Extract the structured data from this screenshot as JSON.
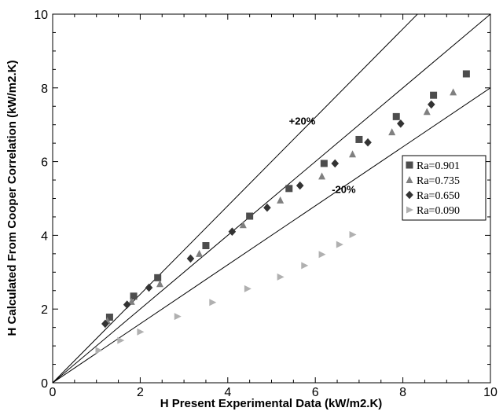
{
  "chart_data": {
    "type": "scatter",
    "xlabel": "H Present Experimental Data (kW/m2.K)",
    "ylabel": "H Calculated From Cooper Correlation (kW/m2.K)",
    "xlim": [
      0,
      10
    ],
    "ylim": [
      0,
      10
    ],
    "x_ticks": [
      "0",
      "2",
      "4",
      "6",
      "8",
      "10"
    ],
    "y_ticks": [
      "0",
      "2",
      "4",
      "6",
      "8",
      "10"
    ],
    "grid": false,
    "legend_position": "right",
    "reference_lines": [
      {
        "label": "",
        "slope": 1.0
      },
      {
        "label": "+20%",
        "slope": 1.2
      },
      {
        "label": "-20%",
        "slope": 0.8
      }
    ],
    "annotations": [
      {
        "text": "+20%",
        "x": 5.7,
        "y": 7.0
      },
      {
        "text": "-20%",
        "x": 6.65,
        "y": 5.15
      }
    ],
    "series": [
      {
        "name": "Ra=0.901",
        "marker": "square",
        "color": "#4d4d4d",
        "x": [
          1.3,
          1.85,
          2.4,
          3.5,
          4.5,
          5.4,
          6.2,
          7.0,
          7.85,
          8.7,
          9.45
        ],
        "y": [
          1.78,
          2.35,
          2.85,
          3.72,
          4.52,
          5.27,
          5.95,
          6.6,
          7.22,
          7.8,
          8.38
        ]
      },
      {
        "name": "Ra=0.735",
        "marker": "triangle-up",
        "color": "#808080",
        "x": [
          1.25,
          1.8,
          2.45,
          3.35,
          4.35,
          5.2,
          6.15,
          6.85,
          7.75,
          8.55,
          9.15
        ],
        "y": [
          1.68,
          2.2,
          2.68,
          3.5,
          4.28,
          4.95,
          5.6,
          6.2,
          6.8,
          7.35,
          7.88
        ]
      },
      {
        "name": "Ra=0.650",
        "marker": "diamond",
        "color": "#333333",
        "x": [
          1.2,
          1.7,
          2.2,
          3.15,
          4.1,
          4.9,
          5.65,
          6.45,
          7.2,
          7.95,
          8.65
        ],
        "y": [
          1.6,
          2.12,
          2.58,
          3.37,
          4.1,
          4.75,
          5.35,
          5.95,
          6.52,
          7.03,
          7.55
        ]
      },
      {
        "name": "Ra=0.090",
        "marker": "triangle-right",
        "color": "#b0b0b0",
        "x": [
          1.05,
          1.55,
          2.0,
          2.85,
          3.65,
          4.45,
          5.2,
          5.75,
          6.15,
          6.55,
          6.85
        ],
        "y": [
          0.88,
          1.15,
          1.38,
          1.8,
          2.18,
          2.55,
          2.87,
          3.18,
          3.48,
          3.75,
          4.02
        ]
      }
    ]
  }
}
